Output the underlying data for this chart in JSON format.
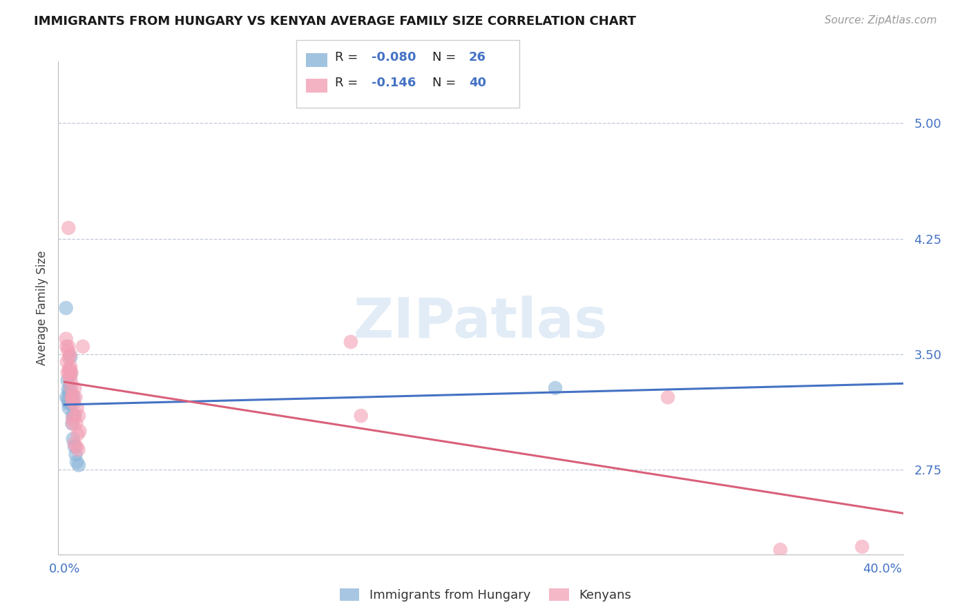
{
  "title": "IMMIGRANTS FROM HUNGARY VS KENYAN AVERAGE FAMILY SIZE CORRELATION CHART",
  "source": "Source: ZipAtlas.com",
  "ylabel": "Average Family Size",
  "yticks": [
    2.75,
    3.5,
    4.25,
    5.0
  ],
  "ytick_color": "#4472c4",
  "blue_color": "#8ab4d8",
  "pink_color": "#f2a0b5",
  "line_blue_color": "#4472c4",
  "line_pink_color": "#d9607a",
  "watermark": "ZIPatlas",
  "R_blue": -0.08,
  "N_blue": 26,
  "R_pink": -0.146,
  "N_pink": 40,
  "blue_scatter": [
    [
      0.0008,
      3.8
    ],
    [
      0.001,
      3.22
    ],
    [
      0.0015,
      3.33
    ],
    [
      0.0018,
      3.27
    ],
    [
      0.0018,
      3.21
    ],
    [
      0.002,
      3.18
    ],
    [
      0.0022,
      3.15
    ],
    [
      0.0025,
      3.25
    ],
    [
      0.0025,
      3.19
    ],
    [
      0.0028,
      3.22
    ],
    [
      0.0028,
      3.28
    ],
    [
      0.003,
      3.48
    ],
    [
      0.003,
      3.37
    ],
    [
      0.0032,
      3.23
    ],
    [
      0.0035,
      3.2
    ],
    [
      0.0035,
      3.18
    ],
    [
      0.0038,
      3.05
    ],
    [
      0.004,
      3.1
    ],
    [
      0.0042,
      2.95
    ],
    [
      0.0045,
      3.22
    ],
    [
      0.0048,
      3.1
    ],
    [
      0.005,
      2.9
    ],
    [
      0.0055,
      2.85
    ],
    [
      0.006,
      2.8
    ],
    [
      0.007,
      2.78
    ],
    [
      0.24,
      3.28
    ]
  ],
  "pink_scatter": [
    [
      0.0008,
      3.6
    ],
    [
      0.001,
      3.55
    ],
    [
      0.0012,
      3.45
    ],
    [
      0.0015,
      3.38
    ],
    [
      0.0018,
      3.52
    ],
    [
      0.002,
      4.32
    ],
    [
      0.002,
      3.55
    ],
    [
      0.0022,
      3.48
    ],
    [
      0.0022,
      3.4
    ],
    [
      0.0025,
      3.38
    ],
    [
      0.0025,
      3.35
    ],
    [
      0.0028,
      3.5
    ],
    [
      0.0028,
      3.4
    ],
    [
      0.003,
      3.42
    ],
    [
      0.0032,
      3.33
    ],
    [
      0.0032,
      3.28
    ],
    [
      0.0035,
      3.38
    ],
    [
      0.0035,
      3.22
    ],
    [
      0.0038,
      3.2
    ],
    [
      0.004,
      3.08
    ],
    [
      0.004,
      3.05
    ],
    [
      0.0042,
      3.23
    ],
    [
      0.0045,
      3.18
    ],
    [
      0.0048,
      2.92
    ],
    [
      0.005,
      3.28
    ],
    [
      0.0052,
      3.1
    ],
    [
      0.0055,
      3.22
    ],
    [
      0.0058,
      3.05
    ],
    [
      0.006,
      2.9
    ],
    [
      0.0062,
      3.15
    ],
    [
      0.0065,
      2.98
    ],
    [
      0.0068,
      2.88
    ],
    [
      0.007,
      3.1
    ],
    [
      0.0075,
      3.0
    ],
    [
      0.009,
      3.55
    ],
    [
      0.14,
      3.58
    ],
    [
      0.145,
      3.1
    ],
    [
      0.295,
      3.22
    ],
    [
      0.35,
      2.23
    ],
    [
      0.39,
      2.25
    ]
  ],
  "xlim": [
    0.0,
    0.41
  ],
  "ylim": [
    2.2,
    5.4
  ],
  "xticklabels": [
    "0.0%",
    "40.0%"
  ],
  "xtick_positions": [
    0.0,
    0.4
  ]
}
